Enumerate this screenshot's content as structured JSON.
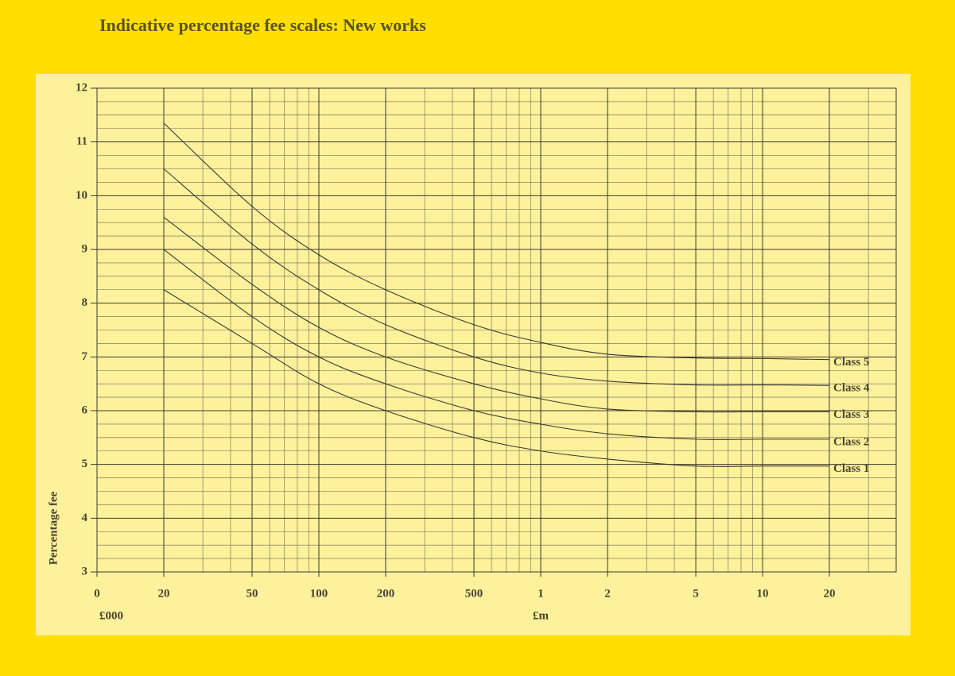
{
  "chart_data": {
    "type": "line",
    "title": "Indicative percentage fee scales: New works",
    "y_label": "Percentage fee",
    "x_units": [
      "£000",
      "£m"
    ],
    "xscale": "log",
    "xlim": [
      10,
      40000
    ],
    "xticks": [
      {
        "value": 10,
        "label": "0"
      },
      20,
      50,
      100,
      200,
      500,
      {
        "value": 1000,
        "label": "1"
      },
      {
        "value": 2000,
        "label": "2"
      },
      {
        "value": 5000,
        "label": "5"
      },
      {
        "value": 10000,
        "label": "10"
      },
      {
        "value": 20000,
        "label": "20"
      }
    ],
    "xminorticks": [
      30,
      40,
      60,
      70,
      80,
      90,
      300,
      400,
      600,
      700,
      800,
      900,
      3000,
      4000,
      6000,
      7000,
      8000,
      9000,
      30000
    ],
    "ylim": [
      3,
      12
    ],
    "yticks": [
      3,
      4,
      5,
      6,
      7,
      8,
      9,
      10,
      11,
      12
    ],
    "yminorticks": [
      3.25,
      3.5,
      3.75,
      4.25,
      4.5,
      4.75,
      5.25,
      5.5,
      5.75,
      6.25,
      6.5,
      6.75,
      7.25,
      7.5,
      7.75,
      8.25,
      8.5,
      8.75,
      9.25,
      9.5,
      9.75,
      10.25,
      10.5,
      10.75,
      11.25,
      11.5,
      11.75
    ],
    "grid": true,
    "x": [
      20,
      50,
      100,
      200,
      500,
      1000,
      2000,
      5000,
      10000,
      20000
    ],
    "series": [
      {
        "name": "Class 5",
        "color": "#3a3a30",
        "values": [
          11.35,
          9.8,
          8.9,
          8.25,
          7.6,
          7.27,
          7.05,
          6.98,
          6.97,
          6.95
        ]
      },
      {
        "name": "Class 4",
        "color": "#3a3a30",
        "values": [
          10.5,
          9.1,
          8.25,
          7.6,
          7.0,
          6.7,
          6.55,
          6.48,
          6.48,
          6.47
        ]
      },
      {
        "name": "Class 3",
        "color": "#3a3a30",
        "values": [
          9.6,
          8.35,
          7.55,
          7.0,
          6.5,
          6.22,
          6.03,
          5.98,
          5.98,
          5.98
        ]
      },
      {
        "name": "Class 2",
        "color": "#3a3a30",
        "values": [
          9.0,
          7.75,
          7.0,
          6.5,
          6.0,
          5.75,
          5.57,
          5.47,
          5.47,
          5.47
        ]
      },
      {
        "name": "Class 1",
        "color": "#3a3a30",
        "values": [
          8.25,
          7.25,
          6.5,
          6.0,
          5.5,
          5.25,
          5.1,
          4.97,
          4.97,
          4.97
        ]
      }
    ]
  }
}
